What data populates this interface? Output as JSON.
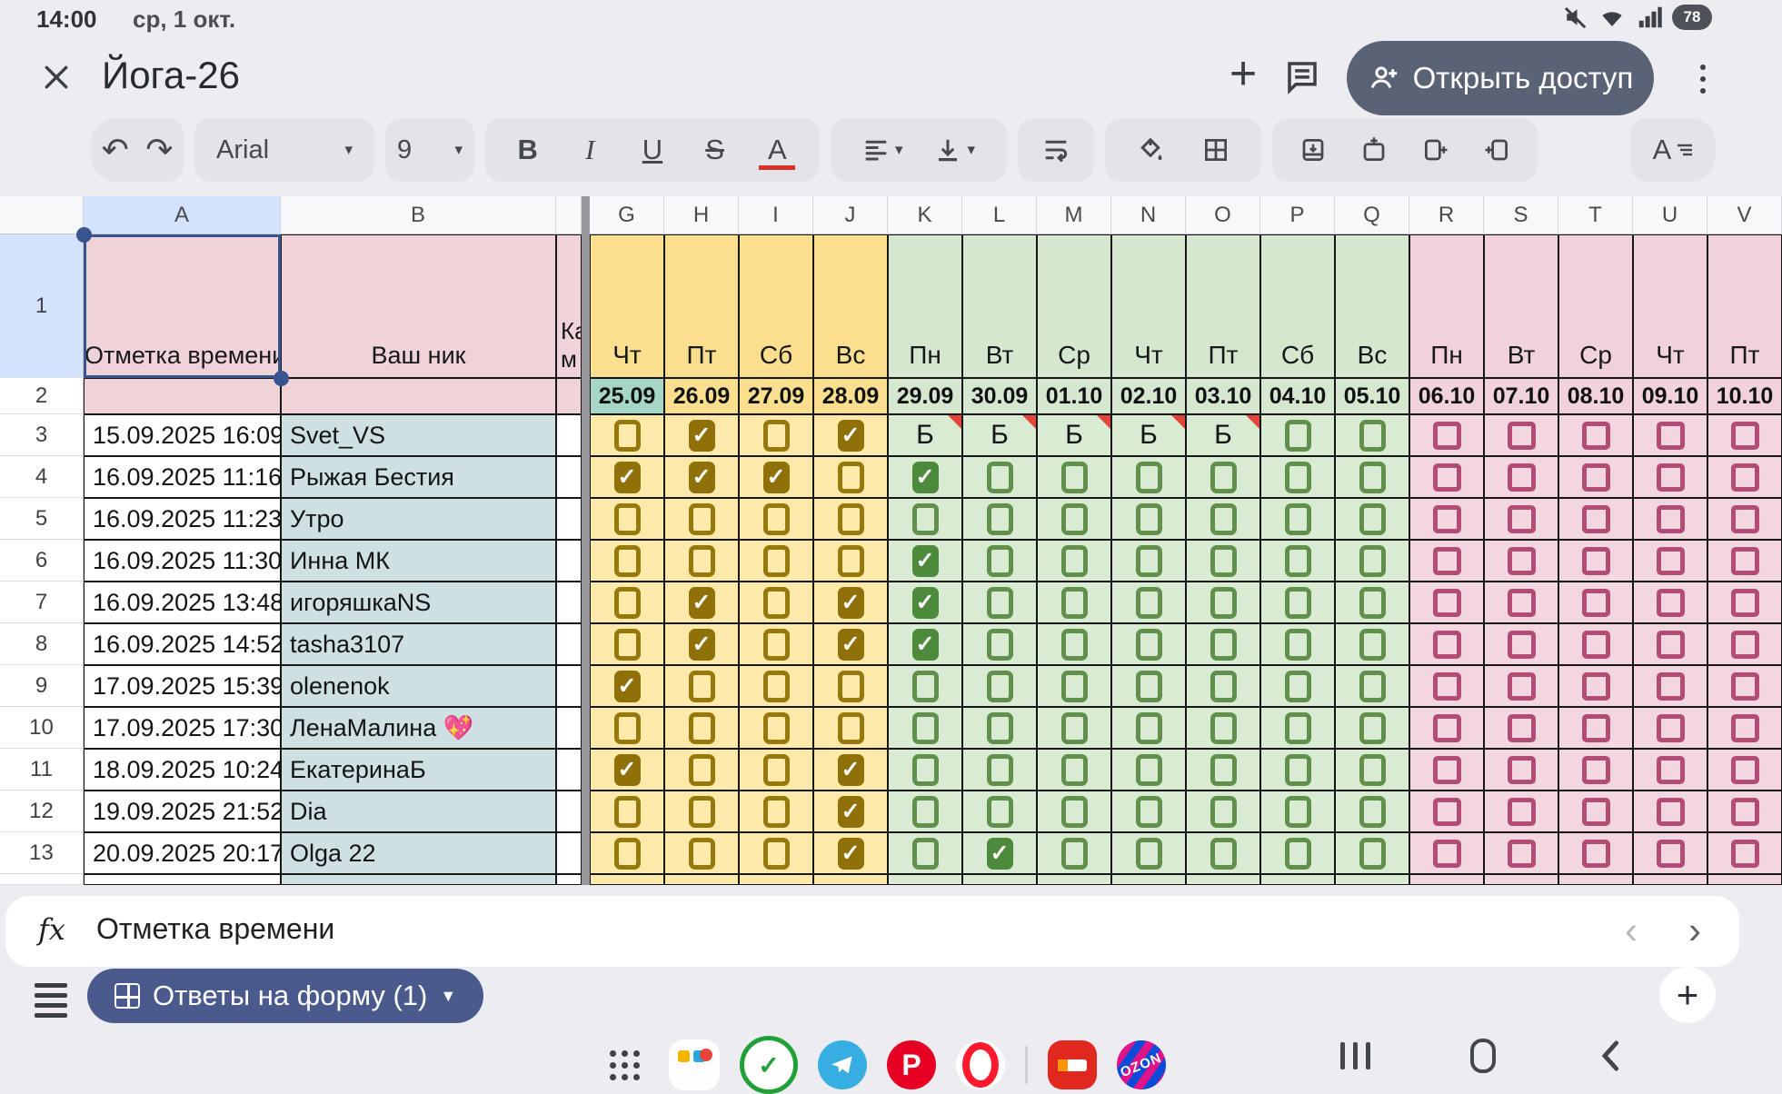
{
  "status_bar": {
    "time": "14:00",
    "date": "ср, 1 окт.",
    "battery": "78"
  },
  "title_bar": {
    "title": "Йога-26",
    "share_button": "Открыть доступ"
  },
  "toolbar": {
    "font_name": "Arial",
    "font_size": "9",
    "bold": "B",
    "italic": "I",
    "underline": "U",
    "strike": "S",
    "text_color": "A",
    "format_letter": "A"
  },
  "grid": {
    "frozen_headers": {
      "a": "A",
      "b": "B"
    },
    "row1": {
      "a": "Отметка времени",
      "b": "Ваш ник",
      "narrow_lines": "Ка\nм"
    },
    "date_col_letters": [
      "G",
      "H",
      "I",
      "J",
      "K",
      "L",
      "M",
      "N",
      "O",
      "P",
      "Q",
      "R",
      "S",
      "T",
      "U",
      "V"
    ],
    "col_groups": [
      "y",
      "y",
      "y",
      "y",
      "g",
      "g",
      "g",
      "g",
      "g",
      "g",
      "g",
      "p",
      "p",
      "p",
      "p",
      "p"
    ],
    "day_names": [
      "Чт",
      "Пт",
      "Сб",
      "Вс",
      "Пн",
      "Вт",
      "Ср",
      "Чт",
      "Пт",
      "Сб",
      "Вс",
      "Пн",
      "Вт",
      "Ср",
      "Чт",
      "Пт"
    ],
    "dates": [
      "25.09",
      "26.09",
      "27.09",
      "28.09",
      "29.09",
      "30.09",
      "01.10",
      "02.10",
      "03.10",
      "04.10",
      "05.10",
      "06.10",
      "07.10",
      "08.10",
      "09.10",
      "10.10"
    ],
    "today_date_index": 0,
    "note_char": "Б",
    "rows": [
      {
        "num": 3,
        "timestamp": "15.09.2025 16:09",
        "nick": "Svet_VS",
        "cells": [
          "u",
          "c",
          "u",
          "c",
          "b",
          "b",
          "b",
          "b",
          "b",
          "u",
          "u",
          "u",
          "u",
          "u",
          "u",
          "u"
        ]
      },
      {
        "num": 4,
        "timestamp": "16.09.2025 11:16",
        "nick": "Рыжая Бестия",
        "cells": [
          "c",
          "c",
          "c",
          "u",
          "c",
          "u",
          "u",
          "u",
          "u",
          "u",
          "u",
          "u",
          "u",
          "u",
          "u",
          "u"
        ]
      },
      {
        "num": 5,
        "timestamp": "16.09.2025 11:23",
        "nick": "Утро",
        "cells": [
          "u",
          "u",
          "u",
          "u",
          "u",
          "u",
          "u",
          "u",
          "u",
          "u",
          "u",
          "u",
          "u",
          "u",
          "u",
          "u"
        ]
      },
      {
        "num": 6,
        "timestamp": "16.09.2025 11:30",
        "nick": "Инна МК",
        "cells": [
          "u",
          "u",
          "u",
          "u",
          "c",
          "u",
          "u",
          "u",
          "u",
          "u",
          "u",
          "u",
          "u",
          "u",
          "u",
          "u"
        ]
      },
      {
        "num": 7,
        "timestamp": "16.09.2025 13:48",
        "nick": "игоряшкаNS",
        "cells": [
          "u",
          "c",
          "u",
          "c",
          "c",
          "u",
          "u",
          "u",
          "u",
          "u",
          "u",
          "u",
          "u",
          "u",
          "u",
          "u"
        ]
      },
      {
        "num": 8,
        "timestamp": "16.09.2025 14:52",
        "nick": "tasha3107",
        "cells": [
          "u",
          "c",
          "u",
          "c",
          "c",
          "u",
          "u",
          "u",
          "u",
          "u",
          "u",
          "u",
          "u",
          "u",
          "u",
          "u"
        ]
      },
      {
        "num": 9,
        "timestamp": "17.09.2025 15:39",
        "nick": "olenenok",
        "cells": [
          "c",
          "u",
          "u",
          "u",
          "u",
          "u",
          "u",
          "u",
          "u",
          "u",
          "u",
          "u",
          "u",
          "u",
          "u",
          "u"
        ]
      },
      {
        "num": 10,
        "timestamp": "17.09.2025 17:30",
        "nick": "ЛенаМалина 💖",
        "cells": [
          "u",
          "u",
          "u",
          "u",
          "u",
          "u",
          "u",
          "u",
          "u",
          "u",
          "u",
          "u",
          "u",
          "u",
          "u",
          "u"
        ]
      },
      {
        "num": 11,
        "timestamp": "18.09.2025 10:24",
        "nick": "ЕкатеринаБ",
        "cells": [
          "c",
          "u",
          "u",
          "c",
          "u",
          "u",
          "u",
          "u",
          "u",
          "u",
          "u",
          "u",
          "u",
          "u",
          "u",
          "u"
        ]
      },
      {
        "num": 12,
        "timestamp": "19.09.2025 21:52",
        "nick": "Dia",
        "cells": [
          "u",
          "u",
          "u",
          "c",
          "u",
          "u",
          "u",
          "u",
          "u",
          "u",
          "u",
          "u",
          "u",
          "u",
          "u",
          "u"
        ]
      },
      {
        "num": 13,
        "timestamp": "20.09.2025 20:17",
        "nick": "Olga 22",
        "cells": [
          "u",
          "u",
          "u",
          "c",
          "u",
          "c",
          "u",
          "u",
          "u",
          "u",
          "u",
          "u",
          "u",
          "u",
          "u",
          "u"
        ]
      }
    ]
  },
  "formula_bar": {
    "value": "Отметка времени"
  },
  "sheet_tabs": {
    "active_tab": "Ответы на форму (1)"
  },
  "dock": {
    "ozon_label": "OZON"
  },
  "colors": {
    "accent_selection": "#39558f",
    "share_pill": "#5a6375",
    "tab_pill": "#4a5a8d",
    "yellow_header": "#fcdf8e",
    "yellow_body": "#fde9a9",
    "yellow_check": "#8f7009",
    "green_header": "#d5e8cf",
    "green_body": "#d9ebd3",
    "green_check": "#4e8a3c",
    "pink_header": "#f1d1db",
    "pink_body": "#f3d7e0",
    "pink_check": "#b24c74",
    "today_highlight": "#a6d7c6",
    "rose_header": "#f0d3d9",
    "nick_column": "#cfe0e3",
    "note_marker": "#e2453a"
  }
}
